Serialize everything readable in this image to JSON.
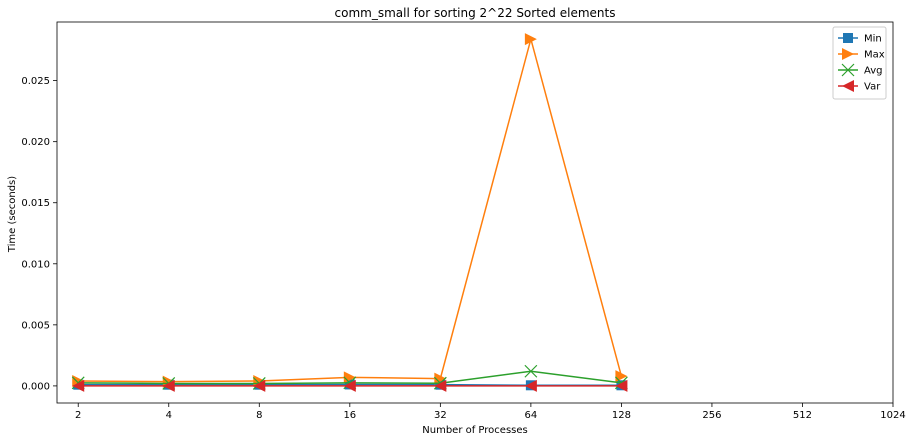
{
  "chart_data": {
    "type": "line",
    "title": "comm_small for sorting 2^22 Sorted elements",
    "xlabel": "Number of Processes",
    "ylabel": "Time (seconds)",
    "x_scale": "log2",
    "x": [
      2,
      4,
      8,
      16,
      32,
      64,
      128
    ],
    "x_ticks": [
      2,
      4,
      8,
      16,
      32,
      64,
      128,
      256,
      512,
      1024
    ],
    "x_tick_labels": [
      "2",
      "4",
      "8",
      "16",
      "32",
      "64",
      "128",
      "256",
      "512",
      "1024"
    ],
    "xlim": [
      1.7,
      1024
    ],
    "ylim": [
      -0.0014,
      0.0298
    ],
    "y_ticks": [
      0.0,
      0.005,
      0.01,
      0.015,
      0.02,
      0.025
    ],
    "y_tick_labels": [
      "0.000",
      "0.005",
      "0.010",
      "0.015",
      "0.020",
      "0.025"
    ],
    "grid": false,
    "legend_position": "top-right",
    "series": [
      {
        "name": "Min",
        "color": "#1f77b4",
        "marker": "square",
        "values": [
          0.0001,
          0.0001,
          0.0001,
          0.00012,
          0.0001,
          5e-05,
          5e-05
        ]
      },
      {
        "name": "Max",
        "color": "#ff7f0e",
        "marker": "triangle-right",
        "values": [
          0.0004,
          0.00035,
          0.0004,
          0.0007,
          0.0006,
          0.0284,
          0.0008
        ]
      },
      {
        "name": "Avg",
        "color": "#2ca02c",
        "marker": "x",
        "values": [
          0.00025,
          0.0002,
          0.0002,
          0.00025,
          0.00022,
          0.0012,
          0.00025
        ]
      },
      {
        "name": "Var",
        "color": "#d62728",
        "marker": "triangle-left",
        "values": [
          0.0,
          0.0,
          0.0,
          0.0,
          0.0,
          0.0,
          0.0
        ]
      }
    ]
  }
}
